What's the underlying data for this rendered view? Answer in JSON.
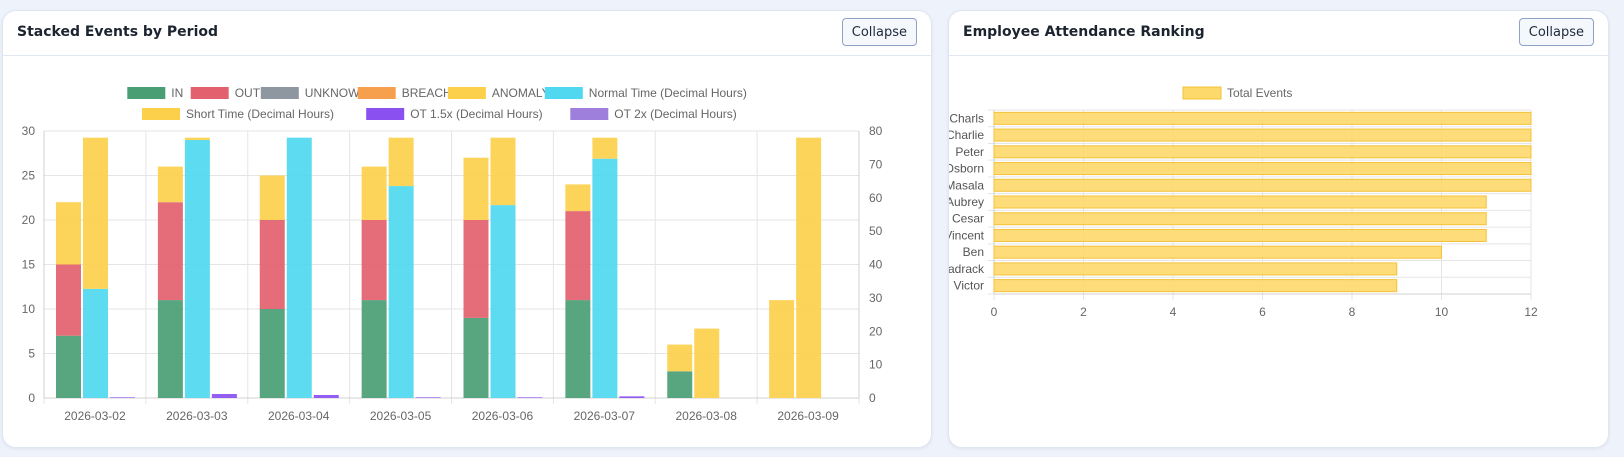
{
  "left_panel": {
    "title": "Stacked Events by Period",
    "collapse_label": "Collapse"
  },
  "right_panel": {
    "title": "Employee Attendance Ranking",
    "collapse_label": "Collapse"
  },
  "chart_data": [
    {
      "type": "bar",
      "title": "",
      "categories": [
        "2026-03-02",
        "2026-03-03",
        "2026-03-04",
        "2026-03-05",
        "2026-03-06",
        "2026-03-07",
        "2026-03-08",
        "2026-03-09"
      ],
      "y_left": {
        "min": 0,
        "max": 30,
        "step": 5
      },
      "y_right": {
        "min": 0,
        "max": 80,
        "step": 10
      },
      "grid": true,
      "legend_position": "top",
      "event_stack": [
        {
          "name": "IN",
          "color": "#4a9e74",
          "values": [
            7,
            11,
            10,
            11,
            9,
            11,
            3,
            0
          ]
        },
        {
          "name": "OUT",
          "color": "#e3616e",
          "values": [
            8,
            11,
            10,
            9,
            11,
            10,
            0,
            0
          ]
        },
        {
          "name": "UNKNOWN",
          "color": "#8e979f",
          "values": [
            0,
            0,
            0,
            0,
            0,
            0,
            0,
            0
          ]
        },
        {
          "name": "BREACH",
          "color": "#f6a04d",
          "values": [
            0,
            0,
            0,
            0,
            0,
            0,
            0,
            0
          ]
        },
        {
          "name": "ANOMALY",
          "color": "#fdd04c",
          "values": [
            7,
            4,
            5,
            6,
            7,
            3,
            3,
            11
          ]
        }
      ],
      "hours_stack": [
        {
          "name": "Normal Time (Decimal Hours)",
          "color": "#4fd8f0",
          "values": [
            32.7,
            77.3,
            78,
            63.5,
            57.8,
            71.7,
            0,
            0
          ]
        },
        {
          "name": "Short Time (Decimal Hours)",
          "color": "#fdd04c",
          "values": [
            45.3,
            0.7,
            0,
            14.5,
            20.2,
            6.3,
            20.8,
            78
          ]
        }
      ],
      "ot_stack": [
        {
          "name": "OT 1.5x (Decimal Hours)",
          "color": "#8a50f0",
          "values": [
            0.2,
            1.2,
            0.9,
            0.2,
            0.2,
            0.5,
            0,
            0
          ]
        },
        {
          "name": "OT 2x (Decimal Hours)",
          "color": "#9e7fdc",
          "values": [
            0,
            0,
            0,
            0,
            0,
            0,
            0,
            0
          ]
        }
      ]
    },
    {
      "type": "bar",
      "orientation": "horizontal",
      "title": "",
      "legend_position": "top",
      "series": [
        {
          "name": "Total Events",
          "color": "#fdd86a",
          "border": "#f3c23a"
        }
      ],
      "categories": [
        "Charls",
        "Charlie",
        "Peter",
        "Osborn",
        "Masala",
        "Aubrey",
        "Cesar",
        "Vincent",
        "Ben",
        "Shadrack",
        "Victor"
      ],
      "values": [
        12,
        12,
        12,
        12,
        12,
        11,
        11,
        11,
        10,
        9,
        9
      ],
      "x_axis": {
        "min": 0,
        "max": 12,
        "step": 2
      },
      "grid": true
    }
  ]
}
